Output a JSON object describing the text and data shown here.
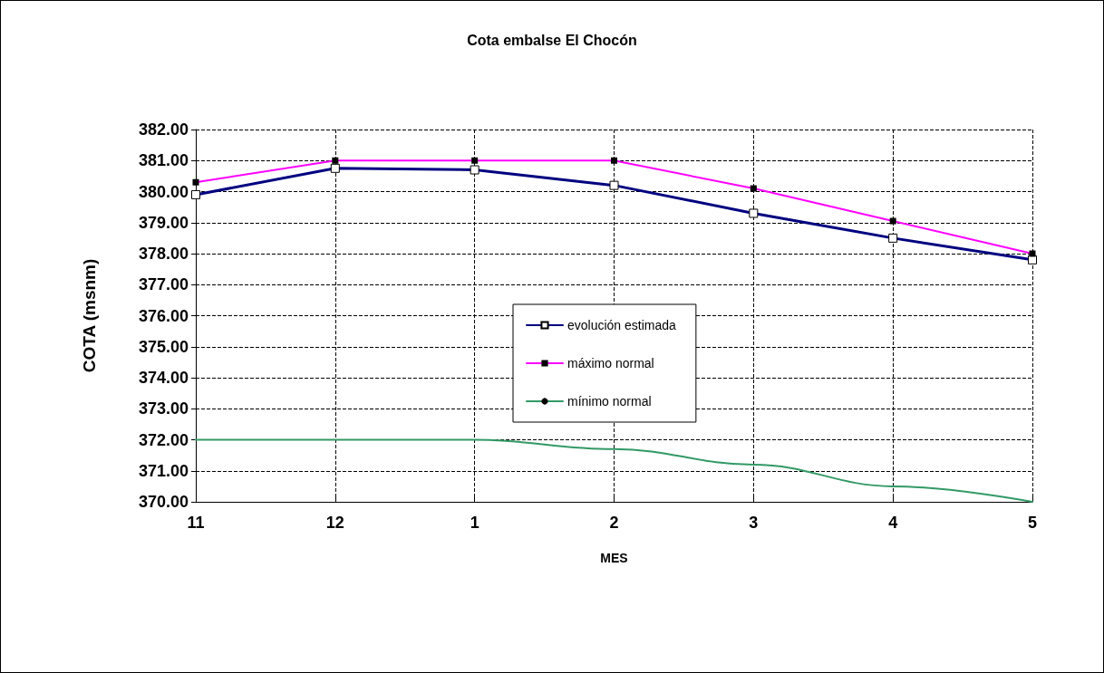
{
  "chart_data": {
    "type": "line",
    "title": "Cota embalse El Chocón",
    "xlabel": "MES",
    "ylabel": "COTA (msnm)",
    "categories": [
      "11",
      "12",
      "1",
      "2",
      "3",
      "4",
      "5"
    ],
    "series": [
      {
        "name": "evolución estimada",
        "color": "#000080",
        "marker": "square",
        "values": [
          379.9,
          380.75,
          380.7,
          380.2,
          379.3,
          378.5,
          377.8
        ]
      },
      {
        "name": "máximo normal",
        "color": "#ff00ff",
        "marker": "square",
        "values": [
          380.3,
          381,
          381,
          381,
          380.1,
          379.05,
          378
        ]
      },
      {
        "name": "mínimo normal",
        "color": "#339966",
        "marker": "none",
        "values": [
          372,
          372,
          372,
          371.7,
          371.2,
          370.5,
          370
        ]
      }
    ],
    "ylim": [
      370,
      382
    ],
    "yticks": [
      {
        "value": 370,
        "label": "370.00"
      },
      {
        "value": 371,
        "label": "371.00"
      },
      {
        "value": 372,
        "label": "372.00"
      },
      {
        "value": 373,
        "label": "373.00"
      },
      {
        "value": 374,
        "label": "374.00"
      },
      {
        "value": 375,
        "label": "375.00"
      },
      {
        "value": 376,
        "label": "376.00"
      },
      {
        "value": 377,
        "label": "377.00"
      },
      {
        "value": 378,
        "label": "378.00"
      },
      {
        "value": 379,
        "label": "379.00"
      },
      {
        "value": 380,
        "label": "380.00"
      },
      {
        "value": 381,
        "label": "381.00"
      },
      {
        "value": 382,
        "label": "382.00"
      }
    ],
    "grid": true,
    "legend": "center"
  }
}
